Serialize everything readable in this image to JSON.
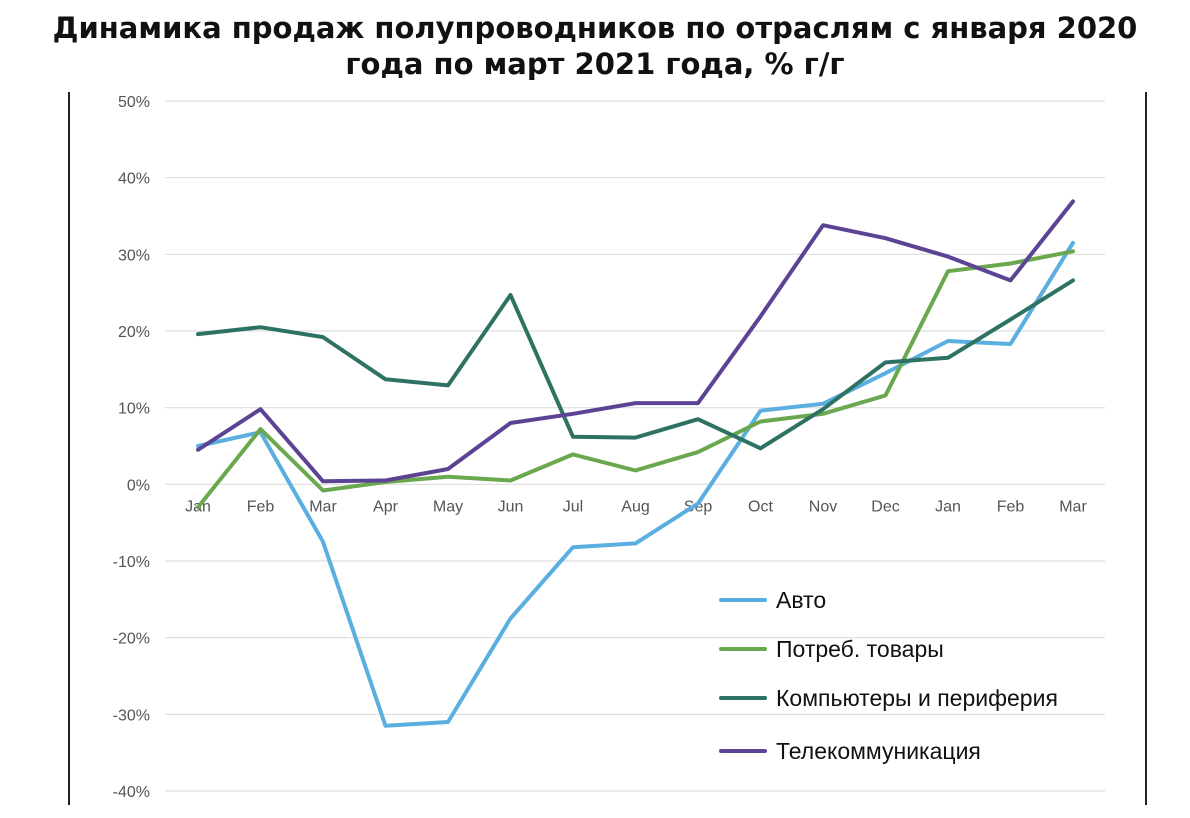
{
  "chart_data": {
    "type": "line",
    "title": "Динамика продаж полупроводников по отраслям с января 2020\nгода по март 2021 года, % г/г",
    "categories": [
      "Jan",
      "Feb",
      "Mar",
      "Apr",
      "May",
      "Jun",
      "Jul",
      "Aug",
      "Sep",
      "Oct",
      "Nov",
      "Dec",
      "Jan",
      "Feb",
      "Mar"
    ],
    "ylim": [
      -40,
      50
    ],
    "yticks": [
      50,
      40,
      30,
      20,
      10,
      0,
      -10,
      -20,
      -30,
      -40
    ],
    "ytick_labels": [
      "50%",
      "40%",
      "30%",
      "20%",
      "10%",
      "0%",
      "-10%",
      "-20%",
      "-30%",
      "-40%"
    ],
    "grid": true,
    "legend_position": "bottom-right",
    "series": [
      {
        "name": "Авто",
        "color": "#5aafe0",
        "values": [
          5,
          6.8,
          -7.5,
          -31.5,
          -31,
          -17.5,
          -8.2,
          -7.7,
          -2.5,
          9.6,
          10.5,
          14.5,
          18.7,
          18.3,
          31.5
        ]
      },
      {
        "name": "Потреб. товары",
        "color": "#6aa84f",
        "values": [
          -3,
          7.2,
          -0.8,
          0.3,
          1,
          0.5,
          3.9,
          1.8,
          4.2,
          8.2,
          9.2,
          11.6,
          27.8,
          28.8,
          30.4
        ]
      },
      {
        "name": "Компьютеры и периферия",
        "color": "#2e7263",
        "values": [
          19.6,
          20.5,
          19.2,
          13.7,
          12.9,
          24.7,
          6.2,
          6.1,
          8.5,
          4.7,
          9.8,
          15.9,
          16.5,
          21.5,
          26.6
        ]
      },
      {
        "name": "Телекоммуникация",
        "color": "#5c4393",
        "values": [
          4.5,
          9.8,
          0.4,
          0.5,
          2,
          8,
          9.2,
          10.6,
          10.6,
          21.9,
          33.8,
          32.1,
          29.7,
          26.6,
          36.9
        ]
      }
    ]
  }
}
